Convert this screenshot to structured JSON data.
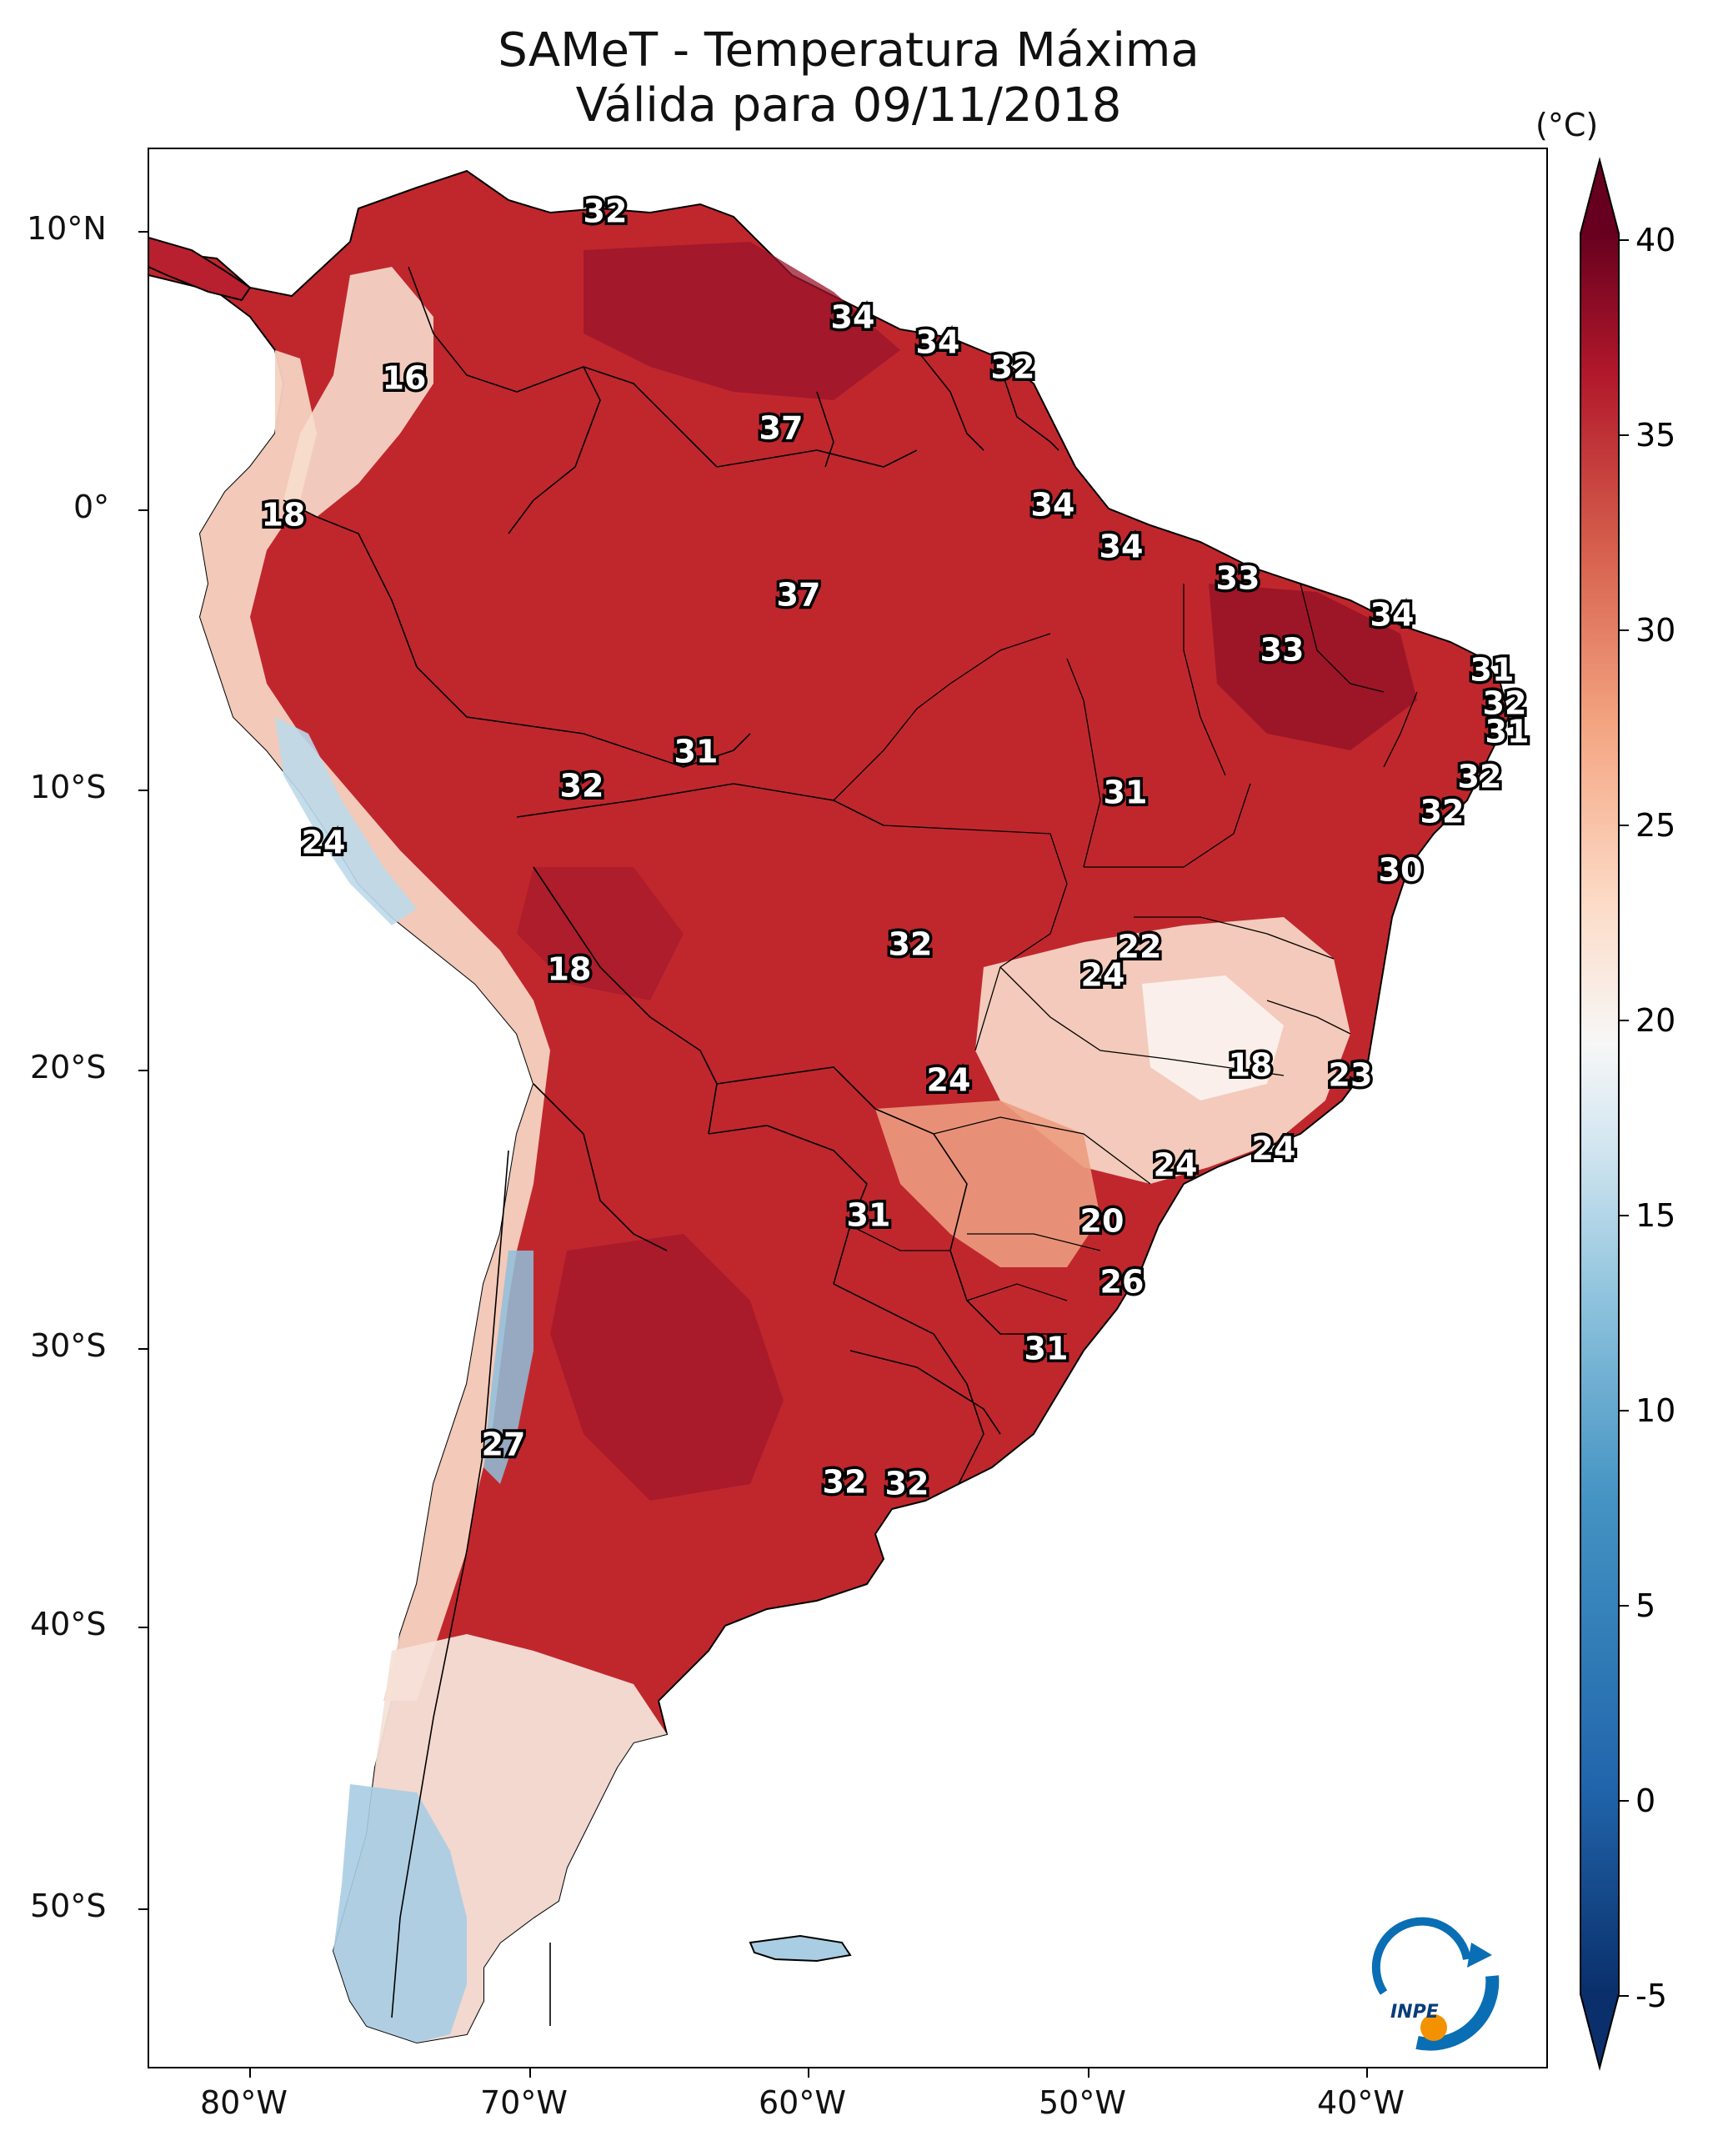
{
  "title": "SAMeT - Temperatura Máxima",
  "subtitle": "Válida para 09/11/2018",
  "colorbar": {
    "unit_label": "(°C)",
    "ticks": [
      "40",
      "35",
      "30",
      "25",
      "20",
      "15",
      "10",
      "5",
      "0",
      "-5"
    ],
    "tick_values": [
      40,
      35,
      30,
      25,
      20,
      15,
      10,
      5,
      0,
      -5
    ],
    "range": [
      -5,
      40
    ],
    "colors": [
      "#0a2f6b",
      "#2166ac",
      "#4393c3",
      "#92c5de",
      "#d1e5f0",
      "#f7f7f7",
      "#fddbc7",
      "#f4a582",
      "#d6604d",
      "#b2182b",
      "#67001f"
    ]
  },
  "axes": {
    "lat_labels": [
      "10°N",
      "0°",
      "10°S",
      "20°S",
      "30°S",
      "40°S",
      "50°S"
    ],
    "lon_labels": [
      "80°W",
      "70°W",
      "60°W",
      "50°W",
      "40°W"
    ]
  },
  "logo": {
    "text": "INPE"
  },
  "colors": {
    "hot": "#b2182b",
    "very_hot": "#8b0d1f",
    "warm": "#d6604d",
    "mild": "#f4a582",
    "cool": "#fde0d2",
    "cold": "#92c5de",
    "frame": "#000000"
  },
  "city_values": [
    "32",
    "34",
    "34",
    "32",
    "16",
    "37",
    "18",
    "34",
    "34",
    "33",
    "34",
    "33",
    "37",
    "31",
    "32",
    "31",
    "32",
    "32",
    "31",
    "31",
    "32",
    "24",
    "30",
    "32",
    "22",
    "24",
    "18",
    "18",
    "24",
    "23",
    "24",
    "24",
    "31",
    "20",
    "26",
    "31",
    "27",
    "32",
    "32"
  ]
}
